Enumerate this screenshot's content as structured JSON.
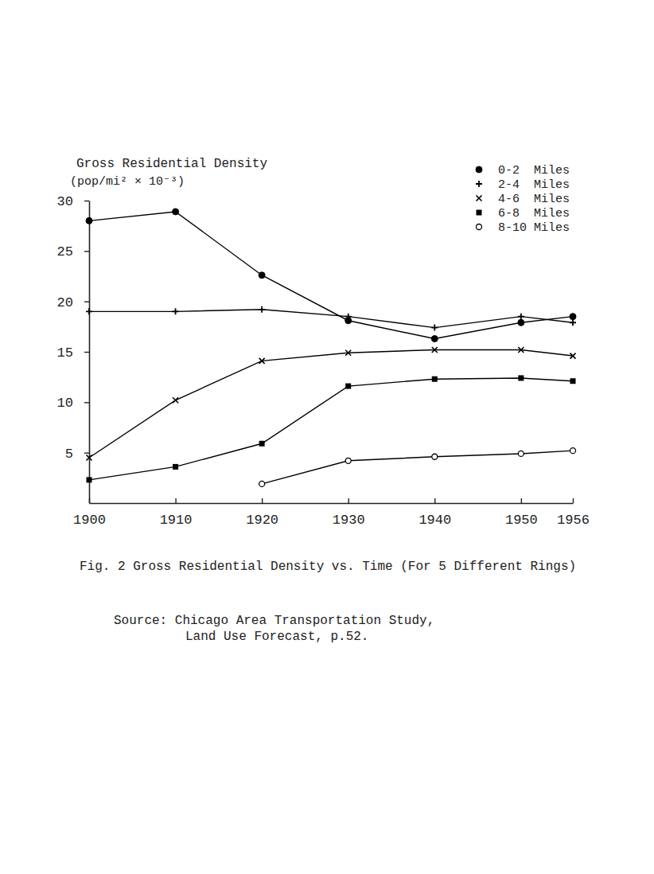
{
  "chart_data": {
    "type": "line",
    "title": "Fig. 2 Gross Residential Density vs. Time (For 5 Different Rings)",
    "source": [
      "Source: Chicago Area Transportation Study,",
      "Land Use Forecast, p.52."
    ],
    "y_label": "Gross Residential Density",
    "annotations": [
      "(pop/mi² × 10⁻³)"
    ],
    "x": [
      1900,
      1910,
      1920,
      1930,
      1940,
      1950,
      1956
    ],
    "xlim": [
      1900,
      1956
    ],
    "xticks": [
      1900,
      1910,
      1920,
      1930,
      1940,
      1950,
      1956
    ],
    "ylim": [
      0,
      30
    ],
    "yticks": [
      5,
      10,
      15,
      20,
      25,
      30
    ],
    "grid": false,
    "legend": "upper right",
    "series": [
      {
        "name": "0-2  Miles",
        "color": "#000000",
        "marker": "circle-filled",
        "line_style": "solid",
        "values": [
          28,
          28.9,
          22.6,
          18.1,
          16.3,
          17.9,
          18.5
        ]
      },
      {
        "name": "2-4  Miles",
        "color": "#000000",
        "marker": "plus",
        "line_style": "solid",
        "values": [
          19,
          19,
          19.2,
          18.5,
          17.4,
          18.5,
          17.9
        ]
      },
      {
        "name": "4-6  Miles",
        "color": "#000000",
        "marker": "x",
        "line_style": "solid",
        "values": [
          4.5,
          10.2,
          14.1,
          14.9,
          15.2,
          15.2,
          14.6
        ]
      },
      {
        "name": "6-8  Miles",
        "color": "#000000",
        "marker": "square",
        "line_style": "solid",
        "values": [
          2.3,
          3.6,
          5.9,
          11.6,
          12.3,
          12.4,
          12.1
        ]
      },
      {
        "name": "8-10 Miles",
        "color": "#000000",
        "marker": "circle-open",
        "line_style": "solid",
        "values": [
          null,
          null,
          1.9,
          4.2,
          4.6,
          4.9,
          5.2
        ]
      }
    ]
  }
}
